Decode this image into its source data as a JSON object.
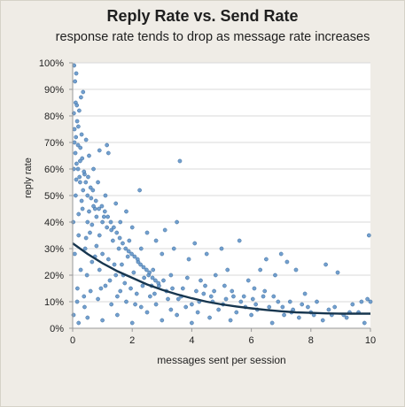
{
  "chart_data": {
    "type": "scatter",
    "title": "Reply Rate vs. Send Rate",
    "subtitle": "response rate tends to drop as message rate increases",
    "xlabel": "messages sent per session",
    "ylabel": "reply rate",
    "xlim": [
      0,
      10
    ],
    "ylim": [
      0,
      1.0
    ],
    "x_ticks": [
      "0",
      "2",
      "4",
      "6",
      "8",
      "10"
    ],
    "y_ticks": [
      "0%",
      "10%",
      "20%",
      "30%",
      "40%",
      "50%",
      "60%",
      "70%",
      "80%",
      "90%",
      "100%"
    ],
    "grid": "horizontal",
    "legend": "none",
    "point_color": "#5b8fc7",
    "trend_color": "#17364f",
    "series": [
      {
        "values_xy": [
          [
            0.05,
            0.99
          ],
          [
            0.12,
            0.96
          ],
          [
            0.08,
            0.93
          ],
          [
            0.35,
            0.89
          ],
          [
            0.28,
            0.87
          ],
          [
            0.1,
            0.85
          ],
          [
            0.22,
            0.82
          ],
          [
            0.15,
            0.78
          ],
          [
            0.06,
            0.75
          ],
          [
            0.3,
            0.73
          ],
          [
            0.45,
            0.71
          ],
          [
            0.18,
            0.69
          ],
          [
            0.9,
            0.67
          ],
          [
            0.55,
            0.65
          ],
          [
            0.25,
            0.63
          ],
          [
            0.7,
            0.6
          ],
          [
            1.15,
            0.69
          ],
          [
            1.2,
            0.66
          ],
          [
            0.4,
            0.58
          ],
          [
            0.12,
            0.56
          ],
          [
            0.85,
            0.55
          ],
          [
            0.6,
            0.53
          ],
          [
            1.1,
            0.5
          ],
          [
            0.3,
            0.48
          ],
          [
            1.45,
            0.47
          ],
          [
            0.75,
            0.45
          ],
          [
            1.8,
            0.44
          ],
          [
            2.25,
            0.52
          ],
          [
            0.2,
            0.43
          ],
          [
            1.05,
            0.42
          ],
          [
            1.6,
            0.4
          ],
          [
            2.0,
            0.38
          ],
          [
            0.5,
            0.4
          ],
          [
            2.5,
            0.36
          ],
          [
            1.3,
            0.37
          ],
          [
            2.8,
            0.33
          ],
          [
            3.1,
            0.37
          ],
          [
            3.5,
            0.4
          ],
          [
            3.6,
            0.63
          ],
          [
            0.9,
            0.35
          ],
          [
            1.9,
            0.33
          ],
          [
            2.3,
            0.3
          ],
          [
            3.0,
            0.28
          ],
          [
            3.4,
            0.3
          ],
          [
            4.1,
            0.32
          ],
          [
            3.9,
            0.26
          ],
          [
            4.5,
            0.28
          ],
          [
            5.0,
            0.3
          ],
          [
            5.6,
            0.33
          ],
          [
            6.5,
            0.26
          ],
          [
            7.0,
            0.28
          ],
          [
            7.2,
            0.25
          ],
          [
            6.3,
            0.22
          ],
          [
            5.2,
            0.22
          ],
          [
            4.8,
            0.2
          ],
          [
            4.3,
            0.18
          ],
          [
            5.9,
            0.18
          ],
          [
            6.8,
            0.2
          ],
          [
            7.5,
            0.22
          ],
          [
            8.5,
            0.24
          ],
          [
            8.9,
            0.21
          ],
          [
            9.95,
            0.35
          ],
          [
            9.7,
            0.1
          ],
          [
            9.9,
            0.11
          ],
          [
            10.0,
            0.1
          ],
          [
            9.3,
            0.06
          ],
          [
            8.8,
            0.08
          ],
          [
            8.2,
            0.1
          ],
          [
            7.8,
            0.13
          ],
          [
            7.4,
            0.07
          ],
          [
            6.9,
            0.1
          ],
          [
            6.4,
            0.12
          ],
          [
            6.1,
            0.15
          ],
          [
            5.8,
            0.08
          ],
          [
            5.4,
            0.12
          ],
          [
            5.1,
            0.16
          ],
          [
            4.7,
            0.1
          ],
          [
            4.4,
            0.13
          ],
          [
            4.0,
            0.09
          ],
          [
            3.7,
            0.15
          ],
          [
            3.3,
            0.2
          ],
          [
            3.2,
            0.11
          ],
          [
            2.9,
            0.16
          ],
          [
            2.7,
            0.22
          ],
          [
            2.6,
            0.12
          ],
          [
            2.4,
            0.19
          ],
          [
            2.2,
            0.25
          ],
          [
            2.1,
            0.09
          ],
          [
            1.95,
            0.15
          ],
          [
            1.85,
            0.27
          ],
          [
            1.7,
            0.2
          ],
          [
            1.55,
            0.3
          ],
          [
            1.5,
            0.12
          ],
          [
            1.4,
            0.24
          ],
          [
            1.35,
            0.33
          ],
          [
            1.25,
            0.18
          ],
          [
            1.0,
            0.28
          ],
          [
            0.95,
            0.15
          ],
          [
            0.8,
            0.31
          ],
          [
            0.65,
            0.25
          ],
          [
            0.58,
            0.36
          ],
          [
            0.48,
            0.2
          ],
          [
            0.42,
            0.3
          ],
          [
            0.38,
            0.12
          ],
          [
            0.33,
            0.45
          ],
          [
            0.27,
            0.22
          ],
          [
            0.2,
            0.35
          ],
          [
            0.16,
            0.15
          ],
          [
            0.1,
            0.5
          ],
          [
            0.07,
            0.28
          ],
          [
            0.04,
            0.6
          ],
          [
            0.02,
            0.4
          ],
          [
            0.03,
            0.05
          ],
          [
            0.2,
            0.02
          ],
          [
            0.5,
            0.04
          ],
          [
            1.0,
            0.03
          ],
          [
            1.5,
            0.05
          ],
          [
            2.0,
            0.02
          ],
          [
            2.5,
            0.06
          ],
          [
            3.0,
            0.03
          ],
          [
            3.5,
            0.05
          ],
          [
            4.0,
            0.02
          ],
          [
            4.6,
            0.04
          ],
          [
            5.3,
            0.03
          ],
          [
            6.0,
            0.05
          ],
          [
            6.7,
            0.02
          ],
          [
            7.6,
            0.04
          ],
          [
            8.4,
            0.03
          ],
          [
            9.1,
            0.05
          ],
          [
            9.8,
            0.02
          ],
          [
            8.0,
            0.06
          ],
          [
            7.1,
            0.05
          ],
          [
            6.2,
            0.07
          ],
          [
            5.5,
            0.06
          ],
          [
            4.9,
            0.07
          ],
          [
            4.2,
            0.06
          ],
          [
            3.8,
            0.08
          ],
          [
            3.3,
            0.07
          ],
          [
            2.8,
            0.09
          ],
          [
            2.3,
            0.08
          ],
          [
            1.8,
            0.1
          ],
          [
            1.3,
            0.09
          ],
          [
            0.85,
            0.11
          ],
          [
            0.4,
            0.08
          ],
          [
            0.15,
            0.1
          ],
          [
            0.6,
            0.14
          ],
          [
            1.1,
            0.16
          ],
          [
            1.6,
            0.14
          ],
          [
            2.15,
            0.13
          ],
          [
            2.65,
            0.16
          ],
          [
            3.15,
            0.14
          ],
          [
            3.65,
            0.12
          ],
          [
            4.15,
            0.14
          ],
          [
            4.65,
            0.12
          ],
          [
            5.15,
            0.11
          ],
          [
            5.65,
            0.1
          ],
          [
            6.15,
            0.09
          ],
          [
            6.6,
            0.08
          ],
          [
            7.3,
            0.1
          ],
          [
            7.9,
            0.08
          ],
          [
            8.6,
            0.07
          ],
          [
            9.4,
            0.09
          ],
          [
            9.6,
            0.06
          ],
          [
            0.25,
            0.55
          ],
          [
            0.35,
            0.52
          ],
          [
            0.5,
            0.5
          ],
          [
            0.7,
            0.46
          ],
          [
            0.8,
            0.42
          ],
          [
            1.0,
            0.4
          ],
          [
            1.15,
            0.38
          ],
          [
            0.55,
            0.44
          ],
          [
            0.65,
            0.39
          ],
          [
            0.45,
            0.34
          ],
          [
            0.75,
            0.27
          ],
          [
            0.9,
            0.22
          ],
          [
            1.2,
            0.26
          ],
          [
            1.45,
            0.2
          ],
          [
            1.65,
            0.24
          ],
          [
            1.75,
            0.17
          ],
          [
            2.05,
            0.21
          ],
          [
            2.35,
            0.16
          ],
          [
            2.55,
            0.2
          ],
          [
            2.75,
            0.13
          ],
          [
            3.05,
            0.18
          ],
          [
            3.35,
            0.15
          ],
          [
            3.55,
            0.11
          ],
          [
            3.85,
            0.19
          ],
          [
            4.25,
            0.1
          ],
          [
            4.45,
            0.16
          ],
          [
            4.75,
            0.14
          ],
          [
            5.05,
            0.09
          ],
          [
            5.35,
            0.14
          ],
          [
            5.75,
            0.12
          ],
          [
            6.05,
            0.11
          ],
          [
            6.45,
            0.14
          ],
          [
            6.75,
            0.12
          ],
          [
            7.05,
            0.08
          ],
          [
            7.35,
            0.06
          ],
          [
            7.7,
            0.09
          ],
          [
            8.1,
            0.05
          ],
          [
            8.7,
            0.05
          ],
          [
            9.2,
            0.04
          ],
          [
            0.06,
            0.7
          ],
          [
            0.09,
            0.66
          ],
          [
            0.13,
            0.62
          ],
          [
            0.18,
            0.6
          ],
          [
            0.23,
            0.57
          ],
          [
            0.11,
            0.72
          ],
          [
            0.04,
            0.81
          ],
          [
            0.14,
            0.84
          ],
          [
            0.19,
            0.76
          ],
          [
            0.26,
            0.68
          ],
          [
            0.32,
            0.64
          ],
          [
            0.38,
            0.59
          ],
          [
            0.44,
            0.55
          ],
          [
            0.52,
            0.57
          ],
          [
            0.62,
            0.49
          ],
          [
            0.68,
            0.52
          ],
          [
            0.78,
            0.48
          ],
          [
            0.88,
            0.45
          ],
          [
            0.98,
            0.46
          ],
          [
            1.08,
            0.44
          ],
          [
            1.18,
            0.42
          ],
          [
            1.28,
            0.4
          ],
          [
            1.38,
            0.38
          ],
          [
            1.48,
            0.36
          ],
          [
            1.58,
            0.34
          ],
          [
            1.68,
            0.32
          ],
          [
            1.78,
            0.3
          ],
          [
            1.88,
            0.29
          ],
          [
            1.98,
            0.28
          ],
          [
            2.08,
            0.27
          ],
          [
            2.18,
            0.26
          ],
          [
            2.28,
            0.24
          ],
          [
            2.38,
            0.23
          ],
          [
            2.48,
            0.22
          ],
          [
            2.58,
            0.21
          ],
          [
            2.68,
            0.19
          ],
          [
            2.78,
            0.18
          ],
          [
            2.88,
            0.17
          ]
        ]
      }
    ],
    "trendline": {
      "x": [
        0,
        0.5,
        1,
        1.5,
        2,
        2.5,
        3,
        3.5,
        4,
        4.5,
        5,
        5.5,
        6,
        6.5,
        7,
        7.5,
        8,
        8.5,
        9,
        9.5,
        10
      ],
      "y": [
        0.32,
        0.28,
        0.245,
        0.215,
        0.19,
        0.165,
        0.145,
        0.128,
        0.113,
        0.1,
        0.09,
        0.082,
        0.075,
        0.069,
        0.064,
        0.06,
        0.058,
        0.056,
        0.055,
        0.055,
        0.055
      ]
    }
  }
}
